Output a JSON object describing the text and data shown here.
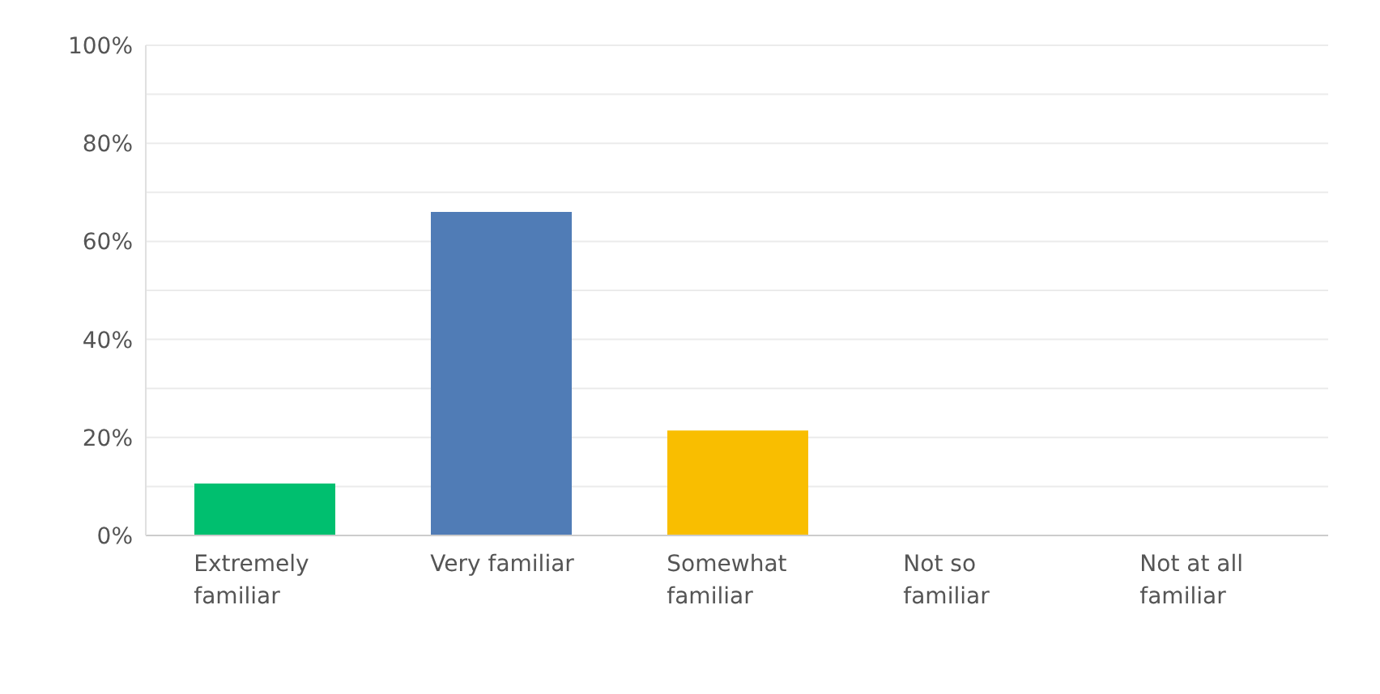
{
  "chart_data": {
    "type": "bar",
    "categories": [
      "Extremely familiar",
      "Very familiar",
      "Somewhat familiar",
      "Not so familiar",
      "Not at all familiar"
    ],
    "values": [
      10.6,
      66,
      21.4,
      0,
      0
    ],
    "colors": [
      "#00bf6f",
      "#507cb6",
      "#f9be00",
      "#00bf6f",
      "#00bf6f"
    ],
    "ylim": [
      0,
      100
    ],
    "yticks": [
      {
        "value": 0,
        "label": "0%"
      },
      {
        "value": 10,
        "label": null
      },
      {
        "value": 20,
        "label": "20%"
      },
      {
        "value": 30,
        "label": null
      },
      {
        "value": 40,
        "label": "40%"
      },
      {
        "value": 50,
        "label": null
      },
      {
        "value": 60,
        "label": "60%"
      },
      {
        "value": 70,
        "label": null
      },
      {
        "value": 80,
        "label": "80%"
      },
      {
        "value": 90,
        "label": null
      },
      {
        "value": 100,
        "label": "100%"
      }
    ],
    "grid": "y",
    "legend": false
  }
}
